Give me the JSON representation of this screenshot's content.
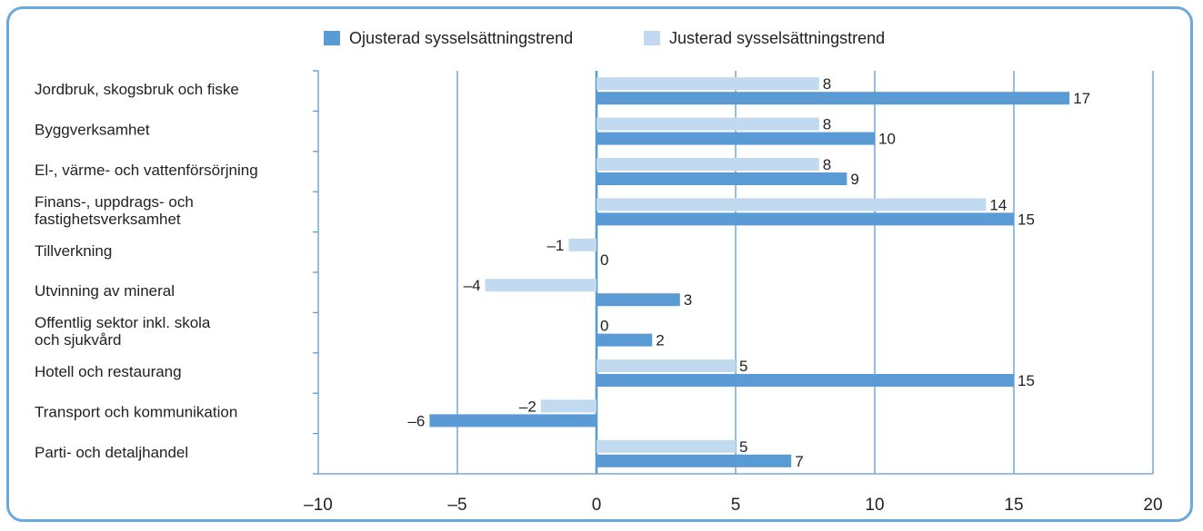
{
  "chart_data": {
    "type": "bar",
    "orientation": "horizontal",
    "categories": [
      [
        "Jordbruk, skogsbruk och fiske"
      ],
      [
        "Byggverksamhet"
      ],
      [
        "El-, värme- och vattenförsörjning"
      ],
      [
        "Finans-, uppdrags- och",
        "fastighetsverksamhet"
      ],
      [
        "Tillverkning"
      ],
      [
        "Utvinning av mineral"
      ],
      [
        "Offentlig sektor inkl. skola",
        "och sjukvård"
      ],
      [
        "Hotell och restaurang"
      ],
      [
        "Transport och kommunikation"
      ],
      [
        "Parti- och detaljhandel"
      ]
    ],
    "series": [
      {
        "name": "Justerad sysselsättningstrend",
        "color": "#c2daf0",
        "values": [
          8,
          8,
          8,
          14,
          -1,
          -4,
          0,
          5,
          -2,
          5
        ],
        "labels": [
          "8",
          "8",
          "8",
          "14",
          "–1",
          "–4",
          "0",
          "5",
          "–2",
          "5"
        ]
      },
      {
        "name": "Ojusterad sysselsättningstrend",
        "color": "#5b9bd5",
        "values": [
          17,
          10,
          9,
          15,
          0,
          3,
          2,
          15,
          -6,
          7
        ],
        "labels": [
          "17",
          "10",
          "9",
          "15",
          "0",
          "3",
          "2",
          "15",
          "–6",
          "7"
        ]
      }
    ],
    "legend": {
      "placement": "top-center",
      "order": [
        "Ojusterad sysselsättningstrend",
        "Justerad sysselsättningstrend"
      ]
    },
    "xlim": [
      -10,
      20
    ],
    "xticks": [
      -10,
      -5,
      0,
      5,
      10,
      15,
      20
    ],
    "xtick_labels": [
      "–10",
      "–5",
      "0",
      "5",
      "10",
      "15",
      "20"
    ],
    "grid": "vertical",
    "colors": {
      "frame": "#6aa9dc",
      "grid": "#5b9bd5",
      "text": "#222222"
    }
  }
}
